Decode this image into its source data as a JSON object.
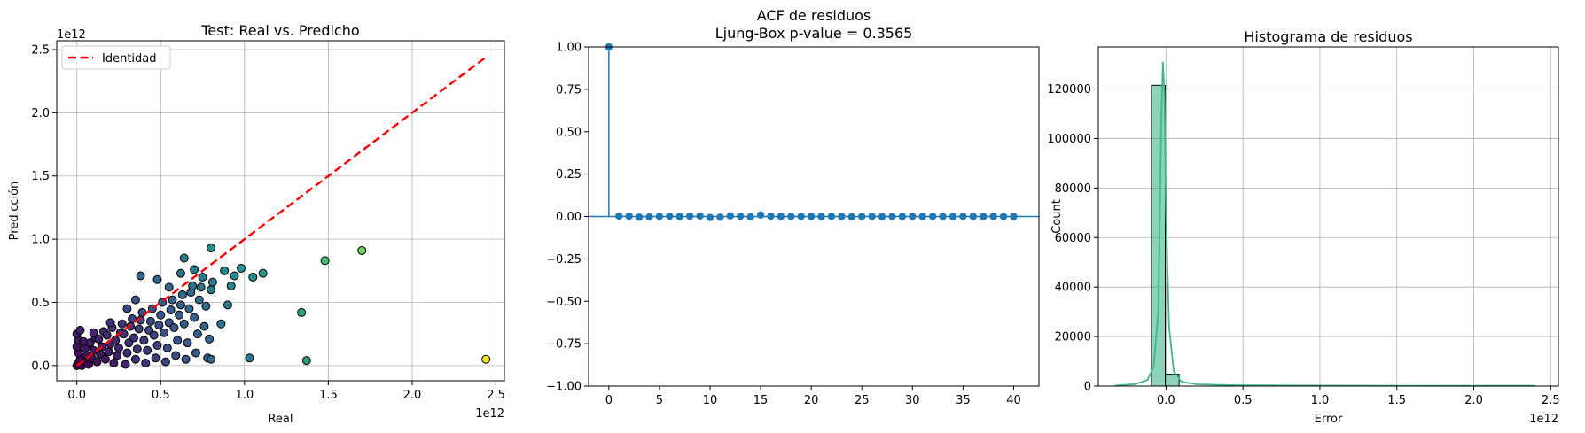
{
  "chart_data": [
    {
      "type": "scatter",
      "title": "Test: Real vs. Predicho",
      "xlabel": "Real",
      "ylabel": "Predicción",
      "x_exponent_label": "1e12",
      "y_exponent_label": "1e12",
      "xlim": [
        -0.12,
        2.55
      ],
      "ylim": [
        -0.12,
        2.57
      ],
      "xticks": [
        0.0,
        0.5,
        1.0,
        1.5,
        2.0,
        2.5
      ],
      "xtick_labels": [
        "0.0",
        "0.5",
        "1.0",
        "1.5",
        "2.0",
        "2.5"
      ],
      "yticks": [
        0.0,
        0.5,
        1.0,
        1.5,
        2.0,
        2.5
      ],
      "ytick_labels": [
        "0.0",
        "0.5",
        "1.0",
        "1.5",
        "2.0",
        "2.5"
      ],
      "grid": true,
      "colormap": "viridis",
      "legend": {
        "placement": "upper-left",
        "entries": [
          "Identidad"
        ]
      },
      "identity_line": {
        "from": [
          0.0,
          0.0
        ],
        "to": [
          2.44,
          2.44
        ],
        "color": "#ff0000"
      },
      "points": [
        [
          0.0,
          0.0
        ],
        [
          0.01,
          0.02
        ],
        [
          0.02,
          0.05
        ],
        [
          0.01,
          0.1
        ],
        [
          0.0,
          0.15
        ],
        [
          0.01,
          0.2
        ],
        [
          0.0,
          0.25
        ],
        [
          0.02,
          0.28
        ],
        [
          0.03,
          0.0
        ],
        [
          0.05,
          0.03
        ],
        [
          0.06,
          0.08
        ],
        [
          0.05,
          0.14
        ],
        [
          0.04,
          0.19
        ],
        [
          0.07,
          0.01
        ],
        [
          0.09,
          0.06
        ],
        [
          0.1,
          0.12
        ],
        [
          0.08,
          0.18
        ],
        [
          0.11,
          0.22
        ],
        [
          0.12,
          0.03
        ],
        [
          0.14,
          0.09
        ],
        [
          0.15,
          0.15
        ],
        [
          0.13,
          0.21
        ],
        [
          0.16,
          0.27
        ],
        [
          0.17,
          0.05
        ],
        [
          0.19,
          0.11
        ],
        [
          0.2,
          0.17
        ],
        [
          0.18,
          0.24
        ],
        [
          0.21,
          0.3
        ],
        [
          0.22,
          0.02
        ],
        [
          0.24,
          0.08
        ],
        [
          0.25,
          0.14
        ],
        [
          0.23,
          0.2
        ],
        [
          0.26,
          0.26
        ],
        [
          0.27,
          0.33
        ],
        [
          0.29,
          0.01
        ],
        [
          0.3,
          0.1
        ],
        [
          0.31,
          0.18
        ],
        [
          0.28,
          0.25
        ],
        [
          0.32,
          0.31
        ],
        [
          0.33,
          0.37
        ],
        [
          0.35,
          0.05
        ],
        [
          0.36,
          0.13
        ],
        [
          0.34,
          0.22
        ],
        [
          0.37,
          0.29
        ],
        [
          0.38,
          0.36
        ],
        [
          0.39,
          0.42
        ],
        [
          0.41,
          0.02
        ],
        [
          0.42,
          0.12
        ],
        [
          0.4,
          0.2
        ],
        [
          0.43,
          0.28
        ],
        [
          0.44,
          0.35
        ],
        [
          0.45,
          0.45
        ],
        [
          0.47,
          0.06
        ],
        [
          0.48,
          0.16
        ],
        [
          0.46,
          0.24
        ],
        [
          0.49,
          0.32
        ],
        [
          0.5,
          0.4
        ],
        [
          0.51,
          0.5
        ],
        [
          0.53,
          0.03
        ],
        [
          0.54,
          0.14
        ],
        [
          0.52,
          0.26
        ],
        [
          0.55,
          0.34
        ],
        [
          0.56,
          0.44
        ],
        [
          0.57,
          0.52
        ],
        [
          0.59,
          0.08
        ],
        [
          0.6,
          0.2
        ],
        [
          0.58,
          0.3
        ],
        [
          0.61,
          0.4
        ],
        [
          0.62,
          0.48
        ],
        [
          0.63,
          0.56
        ],
        [
          0.65,
          0.05
        ],
        [
          0.66,
          0.18
        ],
        [
          0.64,
          0.33
        ],
        [
          0.67,
          0.45
        ],
        [
          0.68,
          0.58
        ],
        [
          0.69,
          0.63
        ],
        [
          0.71,
          0.1
        ],
        [
          0.72,
          0.25
        ],
        [
          0.7,
          0.38
        ],
        [
          0.73,
          0.52
        ],
        [
          0.74,
          0.62
        ],
        [
          0.75,
          0.7
        ],
        [
          0.78,
          0.06
        ],
        [
          0.79,
          0.21
        ],
        [
          0.77,
          0.47
        ],
        [
          0.8,
          0.6
        ],
        [
          0.81,
          0.66
        ],
        [
          0.8,
          0.93
        ],
        [
          0.1,
          0.26
        ],
        [
          0.2,
          0.34
        ],
        [
          0.3,
          0.45
        ],
        [
          0.35,
          0.52
        ],
        [
          0.38,
          0.71
        ],
        [
          0.48,
          0.68
        ],
        [
          0.55,
          0.62
        ],
        [
          0.62,
          0.73
        ],
        [
          0.64,
          0.85
        ],
        [
          0.7,
          0.76
        ],
        [
          0.76,
          0.31
        ],
        [
          0.8,
          0.05
        ],
        [
          0.86,
          0.33
        ],
        [
          0.88,
          0.75
        ],
        [
          0.9,
          0.48
        ],
        [
          0.92,
          0.63
        ],
        [
          0.94,
          0.71
        ],
        [
          0.98,
          0.77
        ],
        [
          1.03,
          0.06
        ],
        [
          1.05,
          0.7
        ],
        [
          1.11,
          0.73
        ],
        [
          1.34,
          0.42
        ],
        [
          1.37,
          0.04
        ],
        [
          1.48,
          0.83
        ],
        [
          1.7,
          0.91
        ],
        [
          2.44,
          0.05
        ]
      ]
    },
    {
      "type": "line",
      "subtype": "stem",
      "title": "ACF de residuos",
      "subtitle": "Ljung-Box p-value = 0.3565",
      "xlabel": "",
      "ylabel": "",
      "xlim": [
        -2,
        42.5
      ],
      "ylim": [
        -1.0,
        1.0
      ],
      "xticks": [
        0,
        5,
        10,
        15,
        20,
        25,
        30,
        35,
        40
      ],
      "xtick_labels": [
        "0",
        "5",
        "10",
        "15",
        "20",
        "25",
        "30",
        "35",
        "40"
      ],
      "yticks": [
        -1.0,
        -0.75,
        -0.5,
        -0.25,
        0.0,
        0.25,
        0.5,
        0.75,
        1.0
      ],
      "ytick_labels": [
        "−1.00",
        "−0.75",
        "−0.50",
        "−0.25",
        "0.00",
        "0.25",
        "0.50",
        "0.75",
        "1.00"
      ],
      "grid": false,
      "color": "#1f77b4",
      "x": [
        0,
        1,
        2,
        3,
        4,
        5,
        6,
        7,
        8,
        9,
        10,
        11,
        12,
        13,
        14,
        15,
        16,
        17,
        18,
        19,
        20,
        21,
        22,
        23,
        24,
        25,
        26,
        27,
        28,
        29,
        30,
        31,
        32,
        33,
        34,
        35,
        36,
        37,
        38,
        39,
        40
      ],
      "values": [
        1.0,
        0.003,
        0.002,
        -0.004,
        -0.003,
        0.001,
        0.002,
        0.0,
        0.002,
        0.003,
        -0.006,
        -0.004,
        0.004,
        0.002,
        -0.002,
        0.009,
        0.002,
        0.001,
        0.0,
        0.001,
        0.001,
        0.0,
        0.001,
        0.0,
        -0.002,
        0.0,
        0.001,
        -0.001,
        0.0,
        0.0,
        0.001,
        0.0,
        0.001,
        0.0,
        0.0,
        0.001,
        0.0,
        0.0,
        0.001,
        0.0,
        0.0
      ]
    },
    {
      "type": "bar",
      "subtype": "histogram",
      "title": "Histograma de residuos",
      "xlabel": "Error",
      "ylabel": "Count",
      "x_exponent_label": "1e12",
      "xlim": [
        -0.44,
        2.55
      ],
      "ylim": [
        0,
        137000
      ],
      "xticks": [
        0.0,
        0.5,
        1.0,
        1.5,
        2.0,
        2.5
      ],
      "xtick_labels": [
        "0.0",
        "0.5",
        "1.0",
        "1.5",
        "2.0",
        "2.5"
      ],
      "yticks": [
        0,
        20000,
        40000,
        60000,
        80000,
        100000,
        120000
      ],
      "ytick_labels": [
        "0",
        "20000",
        "40000",
        "60000",
        "80000",
        "100000",
        "120000"
      ],
      "grid": true,
      "color": "#3fb68b",
      "bins": [
        {
          "from": -0.095,
          "to": -0.005,
          "count": 121500
        },
        {
          "from": -0.005,
          "to": 0.085,
          "count": 4800
        }
      ],
      "kde": {
        "x": [
          -0.33,
          -0.2,
          -0.12,
          -0.08,
          -0.05,
          -0.04,
          -0.03,
          -0.02,
          -0.01,
          0.0,
          0.02,
          0.05,
          0.1,
          0.2,
          0.4,
          0.8,
          1.2,
          1.6,
          2.0,
          2.4
        ],
        "y": [
          200,
          800,
          2500,
          8000,
          30000,
          70000,
          110000,
          131000,
          118000,
          70000,
          24000,
          6000,
          1800,
          700,
          400,
          250,
          180,
          150,
          120,
          100
        ]
      }
    }
  ]
}
